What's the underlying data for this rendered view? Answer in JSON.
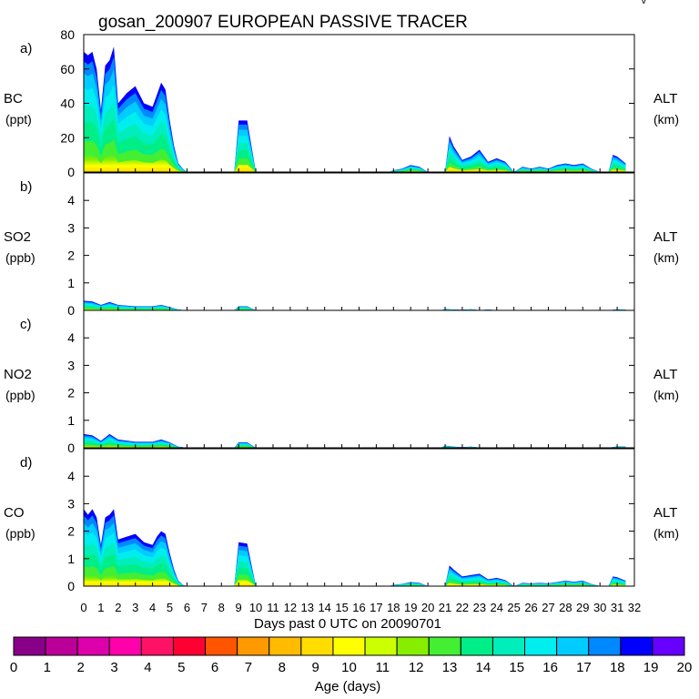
{
  "title": "gosan_200907 EUROPEAN PASSIVE TRACER",
  "corner_mark": "V",
  "x_axis": {
    "label": "Days past 0 UTC on 20090701",
    "min": 0,
    "max": 32,
    "ticks": [
      "0",
      "1",
      "2",
      "3",
      "4",
      "5",
      "6",
      "7",
      "8",
      "9",
      "10",
      "11",
      "12",
      "13",
      "14",
      "15",
      "16",
      "17",
      "18",
      "19",
      "20",
      "21",
      "22",
      "23",
      "24",
      "25",
      "26",
      "27",
      "28",
      "29",
      "30",
      "31",
      "32"
    ]
  },
  "colorbar": {
    "label": "Age (days)",
    "ticks": [
      "0",
      "1",
      "2",
      "3",
      "4",
      "5",
      "6",
      "7",
      "8",
      "9",
      "10",
      "11",
      "12",
      "13",
      "14",
      "15",
      "16",
      "17",
      "18",
      "19",
      "20"
    ],
    "colors": [
      "#880088",
      "#bb0099",
      "#dd00aa",
      "#ff00aa",
      "#ff1166",
      "#ff0033",
      "#ff5500",
      "#ff9900",
      "#ffbb00",
      "#ffdd00",
      "#ffff00",
      "#ccff00",
      "#88ee00",
      "#44ee33",
      "#00ee88",
      "#00eebb",
      "#00eeee",
      "#00ccff",
      "#0088ff",
      "#0000ff",
      "#6600ff"
    ]
  },
  "chart_data": [
    {
      "type": "area",
      "panel": "a)",
      "species": "BC",
      "unit": "(ppt)",
      "right_label": "ALT",
      "right_unit": "(km)",
      "ylim": [
        0,
        80
      ],
      "yticks": [
        "0",
        "20",
        "40",
        "60",
        "80"
      ],
      "x": [
        0,
        0.25,
        0.5,
        0.75,
        1.0,
        1.25,
        1.5,
        1.75,
        2.0,
        2.5,
        3.0,
        3.5,
        4.0,
        4.25,
        4.5,
        4.75,
        5.0,
        5.25,
        5.5,
        5.75,
        6.0,
        8.75,
        9.0,
        9.5,
        10.0,
        17.75,
        18.0,
        18.5,
        19.0,
        19.5,
        20.0,
        21.0,
        21.25,
        21.5,
        22.0,
        22.5,
        23.0,
        23.5,
        24.0,
        24.5,
        25.0,
        25.5,
        26.0,
        26.5,
        27.0,
        27.5,
        28.0,
        28.5,
        29.0,
        29.5,
        30.0,
        30.5,
        30.75,
        31.0,
        31.5
      ],
      "total": [
        70,
        68,
        70,
        60,
        36,
        62,
        65,
        73,
        40,
        46,
        50,
        40,
        38,
        45,
        52,
        48,
        30,
        15,
        5,
        2,
        0,
        0,
        30,
        30,
        0,
        0,
        1,
        2,
        4,
        3,
        0,
        0,
        21,
        15,
        7,
        9,
        13,
        6,
        8,
        6,
        0,
        3,
        2,
        3,
        2,
        4,
        5,
        4,
        5,
        2,
        0,
        0,
        10,
        9,
        5
      ],
      "age_fractions": {
        "bands": [
          "3-13",
          "13-14",
          "14-15",
          "15-16",
          "16-17",
          "17-18",
          "18-19",
          "19-20"
        ],
        "values": [
          0.14,
          0.12,
          0.16,
          0.14,
          0.14,
          0.12,
          0.1,
          0.08
        ]
      }
    },
    {
      "type": "area",
      "panel": "b)",
      "species": "SO2",
      "unit": "(ppb)",
      "right_label": "ALT",
      "right_unit": "(km)",
      "ylim": [
        0,
        5
      ],
      "yticks": [
        "0",
        "1",
        "2",
        "3",
        "4"
      ],
      "x": [
        0,
        0.5,
        1.0,
        1.5,
        2.0,
        3.0,
        4.0,
        4.5,
        5.0,
        5.5,
        6.0,
        8.75,
        9.0,
        9.5,
        10.0,
        20.75,
        21.0,
        21.5,
        22.0,
        22.5,
        23.0,
        23.5,
        24.0,
        30.5,
        31.0,
        31.5
      ],
      "total": [
        0.35,
        0.32,
        0.2,
        0.3,
        0.2,
        0.15,
        0.15,
        0.2,
        0.12,
        0.03,
        0,
        0,
        0.15,
        0.15,
        0,
        0,
        0.05,
        0.03,
        0.02,
        0.04,
        0.01,
        0.03,
        0.01,
        0,
        0.04,
        0.03
      ],
      "age_fractions": {
        "bands": [
          "3-13",
          "13-14",
          "14-15",
          "15-16",
          "16-17",
          "17-18",
          "18-19",
          "19-20"
        ],
        "values": [
          0.14,
          0.12,
          0.16,
          0.14,
          0.14,
          0.12,
          0.1,
          0.08
        ]
      }
    },
    {
      "type": "area",
      "panel": "c)",
      "species": "NO2",
      "unit": "(ppb)",
      "right_label": "ALT",
      "right_unit": "(km)",
      "ylim": [
        0,
        5
      ],
      "yticks": [
        "0",
        "1",
        "2",
        "3",
        "4"
      ],
      "x": [
        0,
        0.5,
        1.0,
        1.5,
        2.0,
        3.0,
        4.0,
        4.5,
        5.0,
        5.5,
        6.0,
        8.75,
        9.0,
        9.5,
        10.0,
        20.75,
        21.0,
        21.5,
        22.0,
        22.5,
        23.0,
        30.5,
        31.0,
        31.5
      ],
      "total": [
        0.5,
        0.45,
        0.25,
        0.5,
        0.3,
        0.22,
        0.22,
        0.3,
        0.2,
        0.04,
        0,
        0,
        0.2,
        0.2,
        0,
        0,
        0.08,
        0.04,
        0.02,
        0.04,
        0.01,
        0,
        0.05,
        0.04
      ],
      "age_fractions": {
        "bands": [
          "3-13",
          "13-14",
          "14-15",
          "15-16",
          "16-17",
          "17-18",
          "18-19",
          "19-20"
        ],
        "values": [
          0.14,
          0.12,
          0.16,
          0.14,
          0.14,
          0.12,
          0.1,
          0.08
        ]
      }
    },
    {
      "type": "area",
      "panel": "d)",
      "species": "CO",
      "unit": "(ppb)",
      "right_label": "ALT",
      "right_unit": "(km)",
      "ylim": [
        0,
        5
      ],
      "yticks": [
        "0",
        "1",
        "2",
        "3",
        "4"
      ],
      "x": [
        0,
        0.25,
        0.5,
        0.75,
        1.0,
        1.25,
        1.5,
        1.75,
        2.0,
        2.5,
        3.0,
        3.5,
        4.0,
        4.25,
        4.5,
        4.75,
        5.0,
        5.25,
        5.5,
        5.75,
        6.0,
        8.75,
        9.0,
        9.5,
        10.0,
        17.75,
        18.0,
        18.5,
        19.0,
        19.5,
        20.0,
        21.0,
        21.25,
        21.5,
        22.0,
        22.5,
        23.0,
        23.5,
        24.0,
        24.5,
        25.0,
        25.5,
        26.0,
        26.5,
        27.0,
        27.5,
        28.0,
        28.5,
        29.0,
        29.5,
        30.0,
        30.5,
        30.75,
        31.0,
        31.5
      ],
      "total": [
        2.8,
        2.6,
        2.8,
        2.5,
        1.5,
        2.5,
        2.6,
        2.8,
        1.7,
        1.8,
        1.9,
        1.6,
        1.5,
        1.8,
        2.0,
        1.9,
        1.2,
        0.6,
        0.2,
        0.05,
        0,
        0,
        1.6,
        1.55,
        0,
        0,
        0.05,
        0.08,
        0.15,
        0.12,
        0,
        0,
        0.75,
        0.6,
        0.35,
        0.4,
        0.45,
        0.25,
        0.3,
        0.22,
        0,
        0.12,
        0.1,
        0.12,
        0.1,
        0.15,
        0.2,
        0.16,
        0.2,
        0.08,
        0,
        0,
        0.35,
        0.32,
        0.2
      ],
      "age_fractions": {
        "bands": [
          "3-13",
          "13-14",
          "14-15",
          "15-16",
          "16-17",
          "17-18",
          "18-19",
          "19-20"
        ],
        "values": [
          0.14,
          0.12,
          0.16,
          0.14,
          0.14,
          0.12,
          0.1,
          0.08
        ]
      }
    }
  ]
}
